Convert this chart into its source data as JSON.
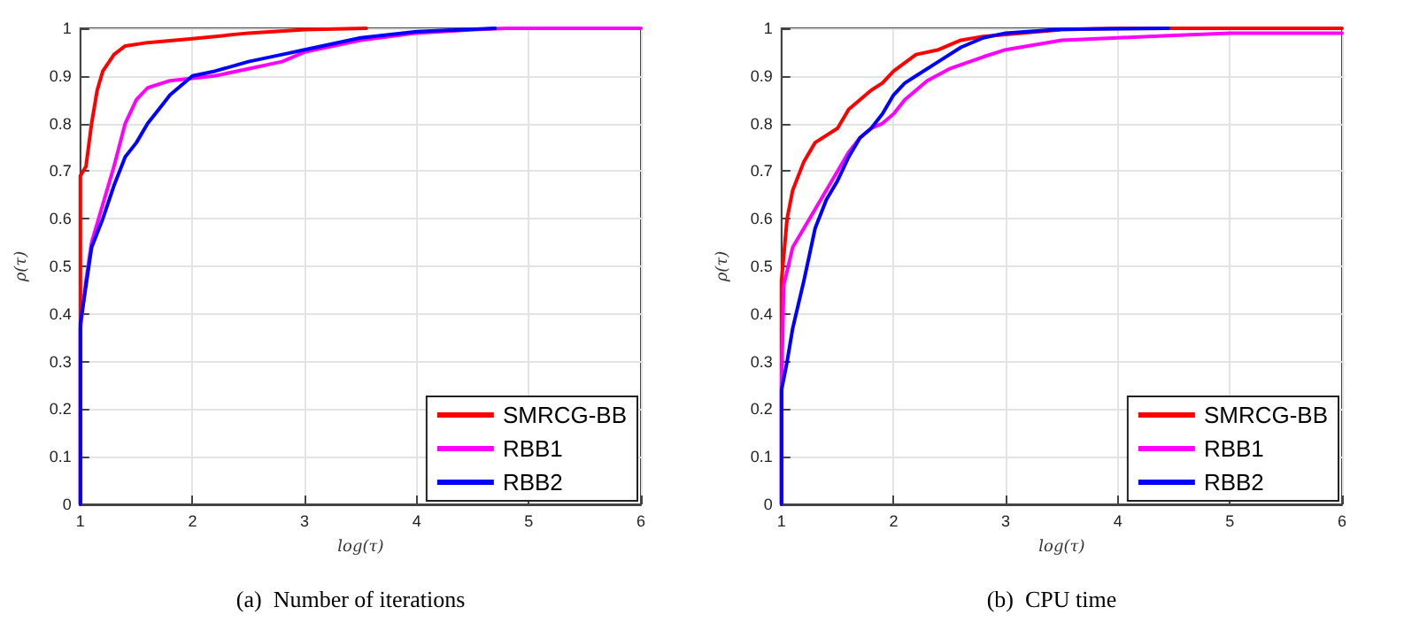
{
  "chart_data": [
    {
      "type": "line",
      "title": "(a)  Number of iterations",
      "xlabel": "log(τ)",
      "ylabel": "ρ(τ)",
      "xlim": [
        1,
        6
      ],
      "xticks": [
        1,
        2,
        3,
        4,
        5,
        6
      ],
      "ylim": [
        0,
        1
      ],
      "yticks": [
        0,
        0.1,
        0.2,
        0.3,
        0.4,
        0.5,
        0.6,
        0.7,
        0.8,
        0.9,
        1
      ],
      "grid": true,
      "legend": "bottom right",
      "marker": "none",
      "line_style": "solid",
      "series": [
        {
          "name": "SMRCG-BB",
          "color": "#ff0000",
          "x": [
            1,
            1,
            1.05,
            1.1,
            1.15,
            1.2,
            1.3,
            1.4,
            1.6,
            2,
            2.5,
            3,
            3.55
          ],
          "values": [
            0,
            0.69,
            0.71,
            0.8,
            0.87,
            0.91,
            0.945,
            0.963,
            0.97,
            0.978,
            0.99,
            0.997,
            1
          ]
        },
        {
          "name": "RBB1",
          "color": "#ff00ff",
          "x": [
            1,
            1,
            1.05,
            1.1,
            1.2,
            1.3,
            1.4,
            1.5,
            1.6,
            1.8,
            2,
            2.2,
            2.5,
            2.8,
            3,
            3.5,
            4,
            4.5,
            4.8,
            6
          ],
          "values": [
            0,
            0.37,
            0.47,
            0.55,
            0.63,
            0.71,
            0.8,
            0.85,
            0.875,
            0.89,
            0.895,
            0.9,
            0.915,
            0.93,
            0.95,
            0.975,
            0.99,
            0.997,
            1,
            1
          ]
        },
        {
          "name": "RBB2",
          "color": "#0000ff",
          "x": [
            1,
            1,
            1.05,
            1.1,
            1.2,
            1.3,
            1.4,
            1.5,
            1.6,
            1.7,
            1.8,
            2,
            2.2,
            2.5,
            2.8,
            3,
            3.5,
            4,
            4.7
          ],
          "values": [
            0,
            0.38,
            0.46,
            0.54,
            0.6,
            0.67,
            0.73,
            0.76,
            0.8,
            0.83,
            0.86,
            0.9,
            0.91,
            0.93,
            0.945,
            0.955,
            0.98,
            0.993,
            1
          ]
        }
      ]
    },
    {
      "type": "line",
      "title": "(b)  CPU time",
      "xlabel": "log(τ)",
      "ylabel": "ρ(τ)",
      "xlim": [
        1,
        6
      ],
      "xticks": [
        1,
        2,
        3,
        4,
        5,
        6
      ],
      "ylim": [
        0,
        1
      ],
      "yticks": [
        0,
        0.1,
        0.2,
        0.3,
        0.4,
        0.5,
        0.6,
        0.7,
        0.8,
        0.9,
        1
      ],
      "grid": true,
      "legend": "bottom right",
      "marker": "none",
      "line_style": "solid",
      "series": [
        {
          "name": "SMRCG-BB",
          "color": "#ff0000",
          "x": [
            1,
            1,
            1.05,
            1.1,
            1.2,
            1.3,
            1.5,
            1.6,
            1.8,
            1.9,
            2,
            2.2,
            2.4,
            2.6,
            2.8,
            3.5,
            4,
            6
          ],
          "values": [
            0,
            0.47,
            0.6,
            0.66,
            0.72,
            0.76,
            0.79,
            0.83,
            0.87,
            0.885,
            0.91,
            0.945,
            0.955,
            0.975,
            0.983,
            0.997,
            1,
            1
          ]
        },
        {
          "name": "RBB1",
          "color": "#ff00ff",
          "x": [
            1,
            1,
            1.02,
            1.1,
            1.2,
            1.3,
            1.4,
            1.5,
            1.6,
            1.7,
            1.8,
            1.9,
            2,
            2.1,
            2.3,
            2.5,
            2.8,
            3,
            3.5,
            4,
            4.5,
            5,
            6
          ],
          "values": [
            0,
            0.25,
            0.46,
            0.54,
            0.58,
            0.62,
            0.66,
            0.7,
            0.74,
            0.77,
            0.79,
            0.8,
            0.82,
            0.85,
            0.89,
            0.915,
            0.94,
            0.955,
            0.975,
            0.98,
            0.985,
            0.99,
            0.99
          ]
        },
        {
          "name": "RBB2",
          "color": "#0000ff",
          "x": [
            1,
            1,
            1.05,
            1.1,
            1.2,
            1.3,
            1.4,
            1.5,
            1.6,
            1.7,
            1.8,
            1.9,
            2,
            2.1,
            2.2,
            2.4,
            2.6,
            2.8,
            3,
            3.5,
            4.45
          ],
          "values": [
            0,
            0.24,
            0.3,
            0.37,
            0.47,
            0.58,
            0.64,
            0.68,
            0.73,
            0.77,
            0.79,
            0.82,
            0.86,
            0.885,
            0.9,
            0.93,
            0.96,
            0.98,
            0.99,
            0.998,
            1
          ]
        }
      ]
    }
  ]
}
